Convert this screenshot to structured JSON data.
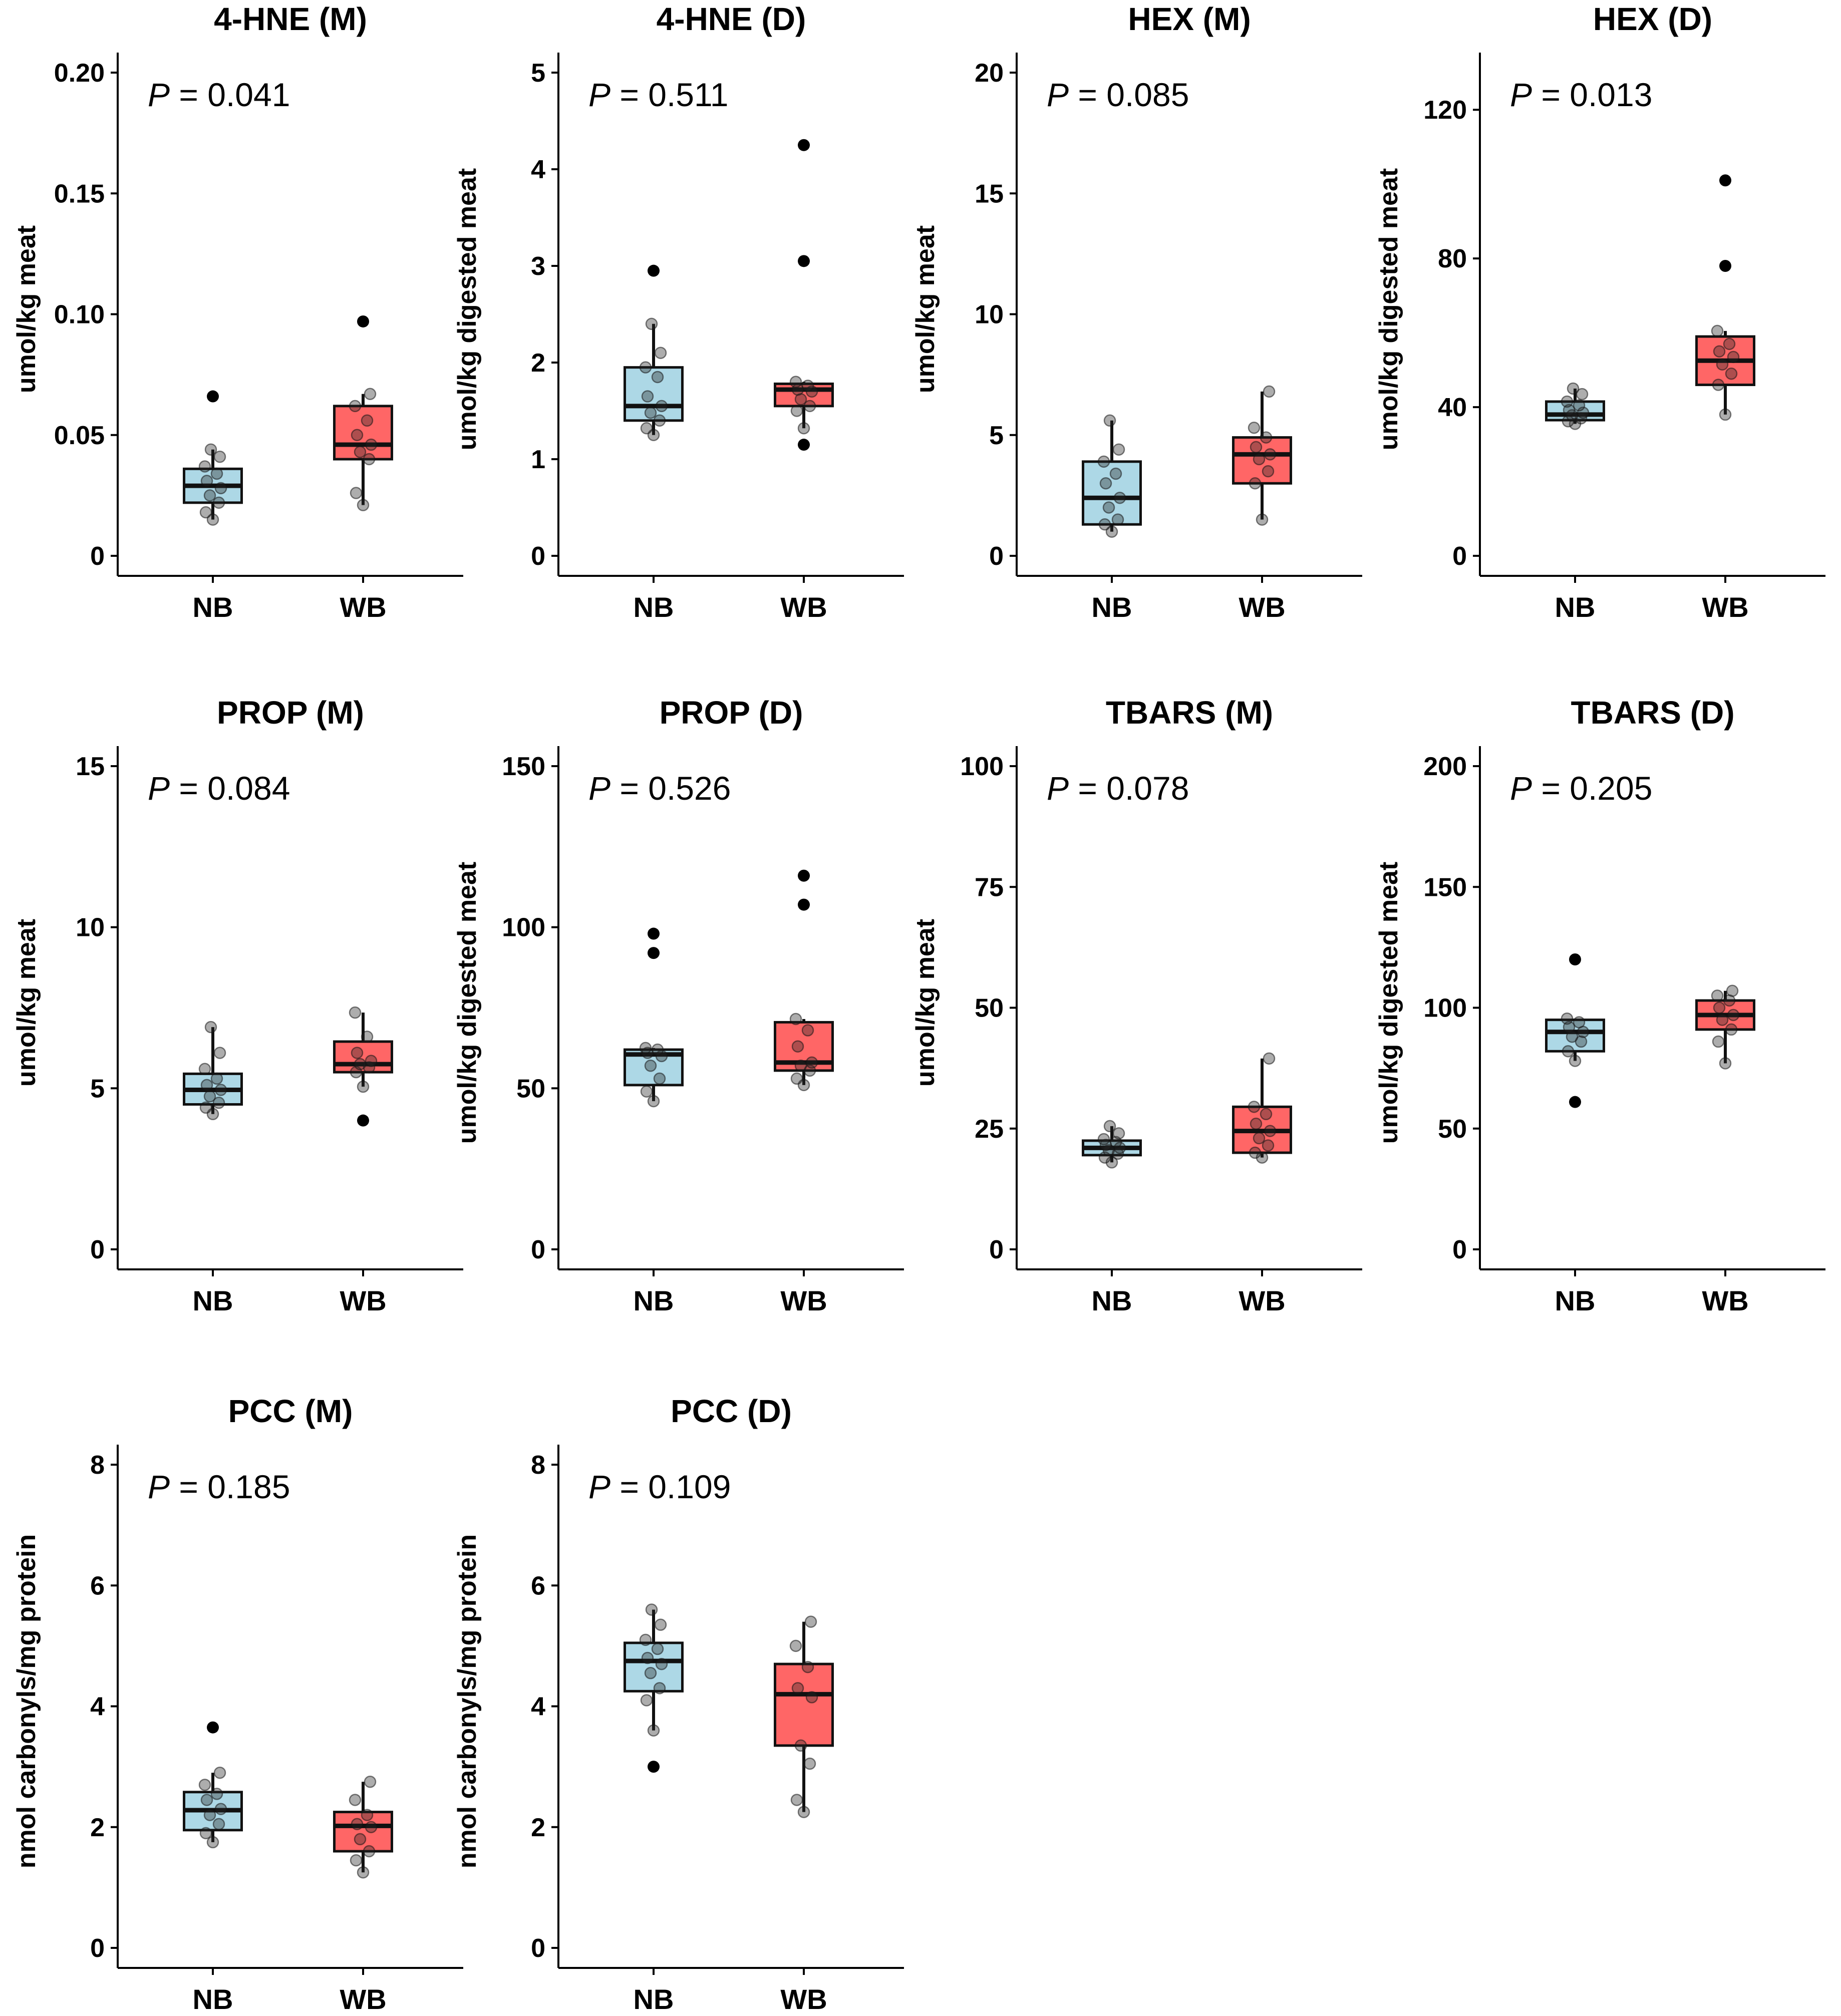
{
  "chart_data": [
    {
      "type": "box",
      "title": "4-HNE (M)",
      "ylabel": "umol/kg meat",
      "p_value": "0.041",
      "categories": [
        "NB",
        "WB"
      ],
      "yticks": [
        0,
        0.05,
        0.1,
        0.15,
        0.2
      ],
      "ytick_labels": [
        "0",
        "0.05",
        "0.10",
        "0.15",
        "0.20"
      ],
      "ylim": [
        0,
        0.2
      ],
      "series": [
        {
          "q1": 0.022,
          "median": 0.029,
          "q3": 0.036,
          "whisker_low": 0.015,
          "whisker_high": 0.044,
          "outliers": [
            0.066
          ],
          "points": [
            0.015,
            0.018,
            0.022,
            0.025,
            0.028,
            0.031,
            0.034,
            0.037,
            0.041,
            0.044
          ]
        },
        {
          "q1": 0.04,
          "median": 0.046,
          "q3": 0.062,
          "whisker_low": 0.021,
          "whisker_high": 0.067,
          "outliers": [
            0.097
          ],
          "points": [
            0.021,
            0.026,
            0.04,
            0.043,
            0.046,
            0.05,
            0.056,
            0.062,
            0.067
          ]
        }
      ]
    },
    {
      "type": "box",
      "title": "4-HNE (D)",
      "ylabel": "umol/kg digested meat",
      "p_value": "0.511",
      "categories": [
        "NB",
        "WB"
      ],
      "yticks": [
        0,
        1,
        2,
        3,
        4,
        5
      ],
      "ytick_labels": [
        "0",
        "1",
        "2",
        "3",
        "4",
        "5"
      ],
      "ylim": [
        0,
        5
      ],
      "series": [
        {
          "q1": 1.4,
          "median": 1.55,
          "q3": 1.95,
          "whisker_low": 1.25,
          "whisker_high": 2.4,
          "outliers": [
            2.95
          ],
          "points": [
            1.25,
            1.32,
            1.4,
            1.48,
            1.55,
            1.65,
            1.85,
            1.95,
            2.1,
            2.4
          ]
        },
        {
          "q1": 1.55,
          "median": 1.72,
          "q3": 1.78,
          "whisker_low": 1.32,
          "whisker_high": 1.8,
          "outliers": [
            1.15,
            3.05,
            4.25
          ],
          "points": [
            1.32,
            1.5,
            1.55,
            1.62,
            1.7,
            1.72,
            1.76,
            1.8
          ]
        }
      ]
    },
    {
      "type": "box",
      "title": "HEX (M)",
      "ylabel": "umol/kg meat",
      "p_value": "0.085",
      "categories": [
        "NB",
        "WB"
      ],
      "yticks": [
        0,
        5,
        10,
        15,
        20
      ],
      "ytick_labels": [
        "0",
        "5",
        "10",
        "15",
        "20"
      ],
      "ylim": [
        0,
        20
      ],
      "series": [
        {
          "q1": 1.3,
          "median": 2.4,
          "q3": 3.9,
          "whisker_low": 1.0,
          "whisker_high": 5.6,
          "outliers": [],
          "points": [
            1.0,
            1.3,
            1.5,
            2.0,
            2.4,
            3.0,
            3.4,
            3.9,
            4.4,
            5.6
          ]
        },
        {
          "q1": 3.0,
          "median": 4.2,
          "q3": 4.9,
          "whisker_low": 1.5,
          "whisker_high": 6.8,
          "outliers": [],
          "points": [
            1.5,
            3.0,
            3.5,
            4.0,
            4.2,
            4.5,
            4.9,
            5.3,
            6.8
          ]
        }
      ]
    },
    {
      "type": "box",
      "title": "HEX (D)",
      "ylabel": "umol/kg digested meat",
      "p_value": "0.013",
      "categories": [
        "NB",
        "WB"
      ],
      "yticks": [
        0,
        40,
        80,
        120
      ],
      "ytick_labels": [
        "0",
        "40",
        "80",
        "120"
      ],
      "ylim": [
        0,
        130
      ],
      "series": [
        {
          "q1": 36.5,
          "median": 38,
          "q3": 41.5,
          "whisker_low": 35.5,
          "whisker_high": 45,
          "outliers": [],
          "points": [
            35.5,
            36.2,
            37,
            37.8,
            38.5,
            39.2,
            40.5,
            41.5,
            43.5,
            45
          ]
        },
        {
          "q1": 46,
          "median": 52.5,
          "q3": 59,
          "whisker_low": 38,
          "whisker_high": 60.5,
          "outliers": [
            78,
            101
          ],
          "points": [
            38,
            46,
            49,
            51.5,
            53.5,
            55,
            57,
            60.5
          ]
        }
      ]
    },
    {
      "type": "box",
      "title": "PROP (M)",
      "ylabel": "umol/kg meat",
      "p_value": "0.084",
      "categories": [
        "NB",
        "WB"
      ],
      "yticks": [
        0,
        5,
        10,
        15
      ],
      "ytick_labels": [
        "0",
        "5",
        "10",
        "15"
      ],
      "ylim": [
        0,
        15
      ],
      "series": [
        {
          "q1": 4.5,
          "median": 4.95,
          "q3": 5.45,
          "whisker_low": 4.2,
          "whisker_high": 6.9,
          "outliers": [],
          "points": [
            4.2,
            4.4,
            4.55,
            4.75,
            4.95,
            5.1,
            5.3,
            5.6,
            6.1,
            6.9
          ]
        },
        {
          "q1": 5.5,
          "median": 5.75,
          "q3": 6.45,
          "whisker_low": 5.05,
          "whisker_high": 7.35,
          "outliers": [
            4.0
          ],
          "points": [
            5.05,
            5.5,
            5.65,
            5.75,
            5.85,
            6.1,
            6.6,
            7.35
          ]
        }
      ]
    },
    {
      "type": "box",
      "title": "PROP (D)",
      "ylabel": "umol/kg digested meat",
      "p_value": "0.526",
      "categories": [
        "NB",
        "WB"
      ],
      "yticks": [
        0,
        50,
        100,
        150
      ],
      "ytick_labels": [
        "0",
        "50",
        "100",
        "150"
      ],
      "ylim": [
        0,
        150
      ],
      "series": [
        {
          "q1": 51,
          "median": 60.5,
          "q3": 62,
          "whisker_low": 46,
          "whisker_high": 62.5,
          "outliers": [
            92,
            98
          ],
          "points": [
            46,
            49,
            53,
            57,
            60,
            61,
            62,
            62.5
          ]
        },
        {
          "q1": 55.5,
          "median": 58,
          "q3": 70.5,
          "whisker_low": 51,
          "whisker_high": 71.5,
          "outliers": [
            107,
            116
          ],
          "points": [
            51,
            53,
            55.5,
            57,
            58,
            63,
            68,
            71.5
          ]
        }
      ]
    },
    {
      "type": "box",
      "title": "TBARS (M)",
      "ylabel": "umol/kg meat",
      "p_value": "0.078",
      "categories": [
        "NB",
        "WB"
      ],
      "yticks": [
        0,
        25,
        50,
        75,
        100
      ],
      "ytick_labels": [
        "0",
        "25",
        "50",
        "75",
        "100"
      ],
      "ylim": [
        0,
        100
      ],
      "series": [
        {
          "q1": 19.5,
          "median": 21,
          "q3": 22.5,
          "whisker_low": 18,
          "whisker_high": 25.5,
          "outliers": [],
          "points": [
            18,
            19,
            19.8,
            20.5,
            21,
            21.6,
            22.2,
            22.8,
            24,
            25.5
          ]
        },
        {
          "q1": 20,
          "median": 24.5,
          "q3": 29.5,
          "whisker_low": 19,
          "whisker_high": 39.5,
          "outliers": [],
          "points": [
            19,
            20,
            21.5,
            23,
            24.5,
            26,
            28,
            29.5,
            39.5
          ]
        }
      ]
    },
    {
      "type": "box",
      "title": "TBARS (D)",
      "ylabel": "umol/kg digested meat",
      "p_value": "0.205",
      "categories": [
        "NB",
        "WB"
      ],
      "yticks": [
        0,
        50,
        100,
        150,
        200
      ],
      "ytick_labels": [
        "0",
        "50",
        "100",
        "150",
        "200"
      ],
      "ylim": [
        0,
        200
      ],
      "series": [
        {
          "q1": 82,
          "median": 90,
          "q3": 95,
          "whisker_low": 78,
          "whisker_high": 95.5,
          "outliers": [
            61,
            120
          ],
          "points": [
            78,
            82,
            86,
            88,
            90,
            92,
            94,
            95.5
          ]
        },
        {
          "q1": 91,
          "median": 97,
          "q3": 103,
          "whisker_low": 77,
          "whisker_high": 107,
          "outliers": [],
          "points": [
            77,
            86,
            91,
            95,
            97,
            100,
            103,
            105,
            107
          ]
        }
      ]
    },
    {
      "type": "box",
      "title": "PCC (M)",
      "ylabel": "nmol carbonyls/mg protein",
      "p_value": "0.185",
      "categories": [
        "NB",
        "WB"
      ],
      "yticks": [
        0,
        2,
        4,
        6,
        8
      ],
      "ytick_labels": [
        "0",
        "2",
        "4",
        "6",
        "8"
      ],
      "ylim": [
        0,
        8
      ],
      "series": [
        {
          "q1": 1.95,
          "median": 2.28,
          "q3": 2.58,
          "whisker_low": 1.75,
          "whisker_high": 2.9,
          "outliers": [
            3.65
          ],
          "points": [
            1.75,
            1.9,
            2.05,
            2.2,
            2.3,
            2.45,
            2.55,
            2.7,
            2.9
          ]
        },
        {
          "q1": 1.6,
          "median": 2.02,
          "q3": 2.25,
          "whisker_low": 1.25,
          "whisker_high": 2.75,
          "outliers": [],
          "points": [
            1.25,
            1.45,
            1.6,
            1.8,
            2.0,
            2.05,
            2.2,
            2.45,
            2.75
          ]
        }
      ]
    },
    {
      "type": "box",
      "title": "PCC (D)",
      "ylabel": "nmol carbonyls/mg protein",
      "p_value": "0.109",
      "categories": [
        "NB",
        "WB"
      ],
      "yticks": [
        0,
        2,
        4,
        6,
        8
      ],
      "ytick_labels": [
        "0",
        "2",
        "4",
        "6",
        "8"
      ],
      "ylim": [
        0,
        8
      ],
      "series": [
        {
          "q1": 4.25,
          "median": 4.75,
          "q3": 5.05,
          "whisker_low": 3.6,
          "whisker_high": 5.6,
          "outliers": [
            3.0
          ],
          "points": [
            3.6,
            4.1,
            4.3,
            4.55,
            4.7,
            4.8,
            4.95,
            5.1,
            5.35,
            5.6
          ]
        },
        {
          "q1": 3.35,
          "median": 4.2,
          "q3": 4.7,
          "whisker_low": 2.25,
          "whisker_high": 5.4,
          "outliers": [],
          "points": [
            2.25,
            2.45,
            3.05,
            3.35,
            4.15,
            4.3,
            4.65,
            5.0,
            5.4
          ]
        }
      ]
    }
  ],
  "colors": {
    "NB": "#add8e6",
    "WB": "#ff6666",
    "axis": "#000000"
  }
}
